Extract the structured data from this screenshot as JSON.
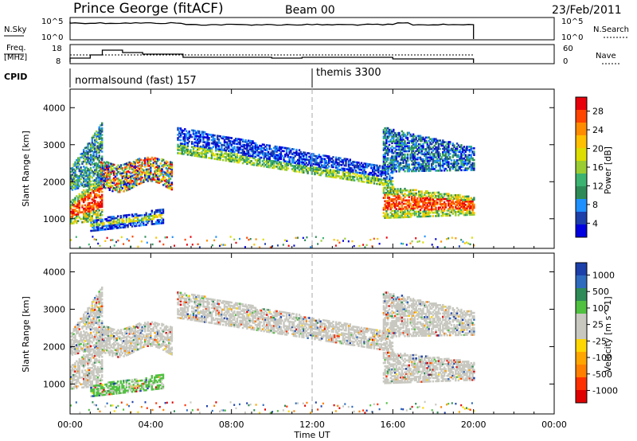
{
  "header": {
    "title": "Prince George (fitACF)",
    "beam": "Beam 00",
    "date": "23/Feb/2011"
  },
  "top_panels": {
    "nsky": {
      "label": "N.Sky",
      "ticks": [
        "10^5",
        "10^0"
      ],
      "right_ticks": [
        "10^5",
        "10^0"
      ],
      "right_label": "N.Search"
    },
    "freq": {
      "label_lines": [
        "Freq.",
        "[MHz]"
      ],
      "ticks": [
        "18",
        "8"
      ],
      "right_ticks": [
        "60",
        "0"
      ],
      "right_label": "Nave"
    },
    "cpid": {
      "label": "CPID",
      "modes": [
        {
          "name": "normalsound (fast) 157"
        },
        {
          "name": "themis 3300"
        }
      ]
    }
  },
  "chart_data": [
    {
      "type": "heatmap",
      "name": "power-panel",
      "ylabel": "Slant Range [km]",
      "ylim": [
        200,
        4500
      ],
      "yticks": [
        1000,
        2000,
        3000,
        4000
      ],
      "xlim_hours": [
        0,
        24
      ],
      "colorbar": {
        "label": "Power [dB]",
        "ticks": [
          "28",
          "24",
          "20",
          "16",
          "12",
          "8",
          "4"
        ],
        "colors": [
          "#e8000b",
          "#ff4500",
          "#ff8c00",
          "#ffc000",
          "#dddd00",
          "#9acd32",
          "#3cb371",
          "#2e8b57",
          "#1e90ff",
          "#1c3faa",
          "#0000e0"
        ]
      }
    },
    {
      "type": "heatmap",
      "name": "velocity-panel",
      "ylabel": "Slant Range [km]",
      "ylim": [
        200,
        4500
      ],
      "yticks": [
        1000,
        2000,
        3000,
        4000
      ],
      "xlim_hours": [
        0,
        24
      ],
      "colorbar": {
        "label": "Velocity [m s^-1]",
        "ticks": [
          "1000",
          "500",
          "100",
          "25",
          "-25",
          "-100",
          "-500",
          "-1000"
        ],
        "colors": [
          "#1c3faa",
          "#2e6bbf",
          "#2e8b57",
          "#50c040",
          "#c8c8c0",
          "#c8c8c0",
          "#ffd700",
          "#ffa500",
          "#ff7f00",
          "#ff3000",
          "#e00000"
        ]
      }
    }
  ],
  "xaxis": {
    "label": "Time UT",
    "ticks": [
      "00:00",
      "04:00",
      "08:00",
      "12:00",
      "16:00",
      "20:00",
      "00:00"
    ]
  }
}
